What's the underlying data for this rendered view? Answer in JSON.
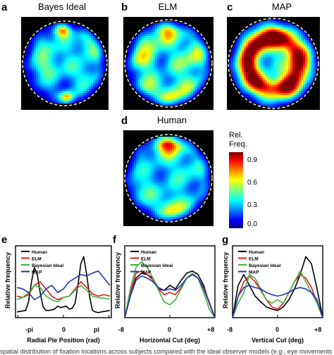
{
  "panels": {
    "a": {
      "letter": "a",
      "title": "Bayes Ideal"
    },
    "b": {
      "letter": "b",
      "title": "ELM"
    },
    "c": {
      "letter": "c",
      "title": "MAP"
    },
    "d": {
      "letter": "d",
      "title": "Human"
    },
    "e": {
      "letter": "e"
    },
    "f": {
      "letter": "f"
    },
    "g": {
      "letter": "g"
    }
  },
  "colorbar": {
    "title_line1": "Rel.",
    "title_line2": "Freq.",
    "ticks": [
      "0.9",
      "0.6",
      "0.3",
      "0.0"
    ],
    "tick_values": [
      0.9,
      0.6,
      0.3,
      0.0
    ],
    "range": [
      0,
      1
    ]
  },
  "heatmaps": {
    "a": {
      "base": 0.22,
      "blobs": [
        [
          -0.05,
          -0.82,
          0.14,
          0.55
        ],
        [
          0.05,
          0.86,
          0.12,
          0.55
        ],
        [
          0.62,
          -0.45,
          0.25,
          0.25
        ],
        [
          -0.5,
          0.1,
          0.22,
          0.22
        ],
        [
          0.0,
          0.0,
          0.3,
          0.12
        ],
        [
          0.55,
          0.35,
          0.2,
          0.2
        ],
        [
          -0.45,
          -0.45,
          0.2,
          0.18
        ]
      ]
    },
    "b": {
      "base": 0.24,
      "blobs": [
        [
          0.0,
          -0.75,
          0.2,
          0.45
        ],
        [
          0.05,
          0.8,
          0.2,
          0.4
        ],
        [
          0.6,
          -0.2,
          0.25,
          0.3
        ],
        [
          -0.6,
          -0.1,
          0.22,
          0.3
        ],
        [
          0.5,
          0.5,
          0.2,
          0.25
        ],
        [
          -0.5,
          0.55,
          0.2,
          0.25
        ],
        [
          -0.45,
          -0.5,
          0.18,
          0.25
        ],
        [
          0.2,
          0.0,
          0.2,
          0.12
        ]
      ]
    },
    "c": {
      "base": 0.32,
      "ring": [
        0.58,
        0.28,
        0.6
      ],
      "blobs": [
        [
          0.0,
          -0.62,
          0.25,
          0.25
        ],
        [
          0.6,
          0.0,
          0.22,
          0.2
        ],
        [
          -0.6,
          0.2,
          0.22,
          0.2
        ],
        [
          0.4,
          0.5,
          0.2,
          0.2
        ],
        [
          -0.4,
          -0.5,
          0.2,
          0.15
        ]
      ]
    },
    "d": {
      "base": 0.3,
      "blobs": [
        [
          0.0,
          -0.86,
          0.22,
          0.65
        ],
        [
          0.1,
          0.75,
          0.2,
          0.35
        ],
        [
          -0.6,
          0.3,
          0.2,
          0.12
        ],
        [
          0.4,
          -0.2,
          0.2,
          0.1
        ]
      ]
    }
  },
  "chart_data": [
    {
      "panel": "e",
      "type": "line",
      "xlabel": "Radial Pie Position (rad)",
      "ylabel": "Relative frequency",
      "xticks": [
        "-pi",
        "0",
        "pi"
      ],
      "xlim": [
        -3.3,
        3.3
      ],
      "ylim": [
        0,
        1
      ],
      "series": [
        {
          "name": "Human",
          "color": "#000000",
          "x": [
            -3.2,
            -2.9,
            -2.6,
            -2.4,
            -2.2,
            -2.0,
            -1.8,
            -1.6,
            -1.4,
            -1.2,
            -1.0,
            -0.8,
            -0.6,
            -0.4,
            -0.2,
            0.0,
            0.2,
            0.4,
            0.6,
            0.8,
            1.0,
            1.2,
            1.4,
            1.6,
            1.8,
            2.0,
            2.2,
            2.4,
            2.6,
            2.9,
            3.2
          ],
          "y": [
            0.08,
            0.09,
            0.1,
            0.22,
            0.5,
            0.7,
            0.6,
            0.35,
            0.15,
            0.1,
            0.1,
            0.11,
            0.12,
            0.16,
            0.14,
            0.15,
            0.16,
            0.12,
            0.13,
            0.2,
            0.45,
            0.75,
            0.85,
            0.6,
            0.3,
            0.1,
            0.08,
            0.07,
            0.08,
            0.09,
            0.1
          ]
        },
        {
          "name": "ELM",
          "color": "#e0191b",
          "x": [
            -3.2,
            -2.8,
            -2.4,
            -2.0,
            -1.6,
            -1.2,
            -0.8,
            -0.4,
            0.0,
            0.4,
            0.8,
            1.2,
            1.6,
            2.0,
            2.4,
            2.8,
            3.2
          ],
          "y": [
            0.3,
            0.28,
            0.32,
            0.45,
            0.5,
            0.4,
            0.3,
            0.25,
            0.28,
            0.3,
            0.4,
            0.5,
            0.42,
            0.33,
            0.3,
            0.32,
            0.3
          ]
        },
        {
          "name": "Bayesian Ideal",
          "color": "#3cb43c",
          "x": [
            -3.2,
            -2.8,
            -2.4,
            -2.0,
            -1.6,
            -1.2,
            -0.8,
            -0.4,
            0.0,
            0.4,
            0.8,
            1.2,
            1.6,
            2.0,
            2.4,
            2.8,
            3.2
          ],
          "y": [
            0.25,
            0.28,
            0.35,
            0.45,
            0.42,
            0.3,
            0.25,
            0.22,
            0.28,
            0.3,
            0.38,
            0.45,
            0.38,
            0.3,
            0.28,
            0.27,
            0.26
          ]
        },
        {
          "name": "MAP",
          "color": "#2236b8",
          "x": [
            -3.2,
            -2.8,
            -2.4,
            -2.0,
            -1.6,
            -1.2,
            -0.8,
            -0.4,
            0.0,
            0.4,
            0.8,
            1.2,
            1.6,
            2.0,
            2.4,
            2.8,
            3.2
          ],
          "y": [
            0.42,
            0.4,
            0.35,
            0.25,
            0.3,
            0.4,
            0.45,
            0.35,
            0.4,
            0.5,
            0.55,
            0.6,
            0.58,
            0.62,
            0.65,
            0.55,
            0.45
          ]
        }
      ]
    },
    {
      "panel": "f",
      "type": "line",
      "xlabel": "Horizontal Cut (deg)",
      "ylabel": "Relative frequency",
      "xticks": [
        "-8",
        "0",
        "+8"
      ],
      "xlim": [
        -8,
        8
      ],
      "ylim": [
        0,
        1
      ],
      "series": [
        {
          "name": "Human",
          "color": "#000000",
          "x": [
            -8,
            -7,
            -6,
            -5,
            -4,
            -3,
            -2,
            -1,
            0,
            1,
            2,
            3,
            4,
            5,
            6,
            7,
            8
          ],
          "y": [
            0.0,
            0.3,
            0.55,
            0.62,
            0.6,
            0.55,
            0.4,
            0.38,
            0.45,
            0.4,
            0.52,
            0.62,
            0.65,
            0.6,
            0.45,
            0.2,
            0.0
          ]
        },
        {
          "name": "ELM",
          "color": "#e0191b",
          "x": [
            -8,
            -7,
            -6,
            -5,
            -4,
            -3,
            -2,
            -1,
            0,
            1,
            2,
            3,
            4,
            5,
            6,
            7,
            8
          ],
          "y": [
            0.0,
            0.35,
            0.62,
            0.65,
            0.6,
            0.52,
            0.4,
            0.32,
            0.35,
            0.32,
            0.42,
            0.55,
            0.6,
            0.55,
            0.42,
            0.22,
            0.0
          ]
        },
        {
          "name": "Bayesian Ideal",
          "color": "#3cb43c",
          "x": [
            -8,
            -7,
            -6,
            -5,
            -4,
            -3,
            -2,
            -1,
            0,
            1,
            2,
            3,
            4,
            5,
            6,
            7,
            8
          ],
          "y": [
            0.0,
            0.4,
            0.7,
            0.78,
            0.7,
            0.55,
            0.38,
            0.22,
            0.18,
            0.25,
            0.4,
            0.55,
            0.62,
            0.55,
            0.35,
            0.12,
            0.0
          ]
        },
        {
          "name": "MAP",
          "color": "#2236b8",
          "x": [
            -8,
            -7,
            -6,
            -5,
            -4,
            -3,
            -2,
            -1,
            0,
            1,
            2,
            3,
            4,
            5,
            6,
            7,
            8
          ],
          "y": [
            0.0,
            0.3,
            0.52,
            0.58,
            0.55,
            0.5,
            0.42,
            0.38,
            0.4,
            0.38,
            0.45,
            0.55,
            0.6,
            0.55,
            0.4,
            0.2,
            0.0
          ]
        }
      ]
    },
    {
      "panel": "g",
      "type": "line",
      "xlabel": "Vertical Cut (deg)",
      "ylabel": "Relative frequency",
      "xticks": [
        "-8",
        "0",
        "+8"
      ],
      "xlim": [
        -8,
        8
      ],
      "ylim": [
        0,
        1
      ],
      "series": [
        {
          "name": "Human",
          "color": "#000000",
          "x": [
            -8,
            -7,
            -6,
            -5,
            -4,
            -3,
            -2,
            -1,
            0,
            1,
            2,
            3,
            4,
            5,
            6,
            7,
            8
          ],
          "y": [
            0.0,
            0.45,
            0.6,
            0.45,
            0.3,
            0.22,
            0.15,
            0.12,
            0.1,
            0.15,
            0.25,
            0.4,
            0.6,
            0.85,
            0.75,
            0.4,
            0.0
          ]
        },
        {
          "name": "ELM",
          "color": "#e0191b",
          "x": [
            -8,
            -7,
            -6,
            -5,
            -4,
            -3,
            -2,
            -1,
            0,
            1,
            2,
            3,
            4,
            5,
            6,
            7,
            8
          ],
          "y": [
            0.0,
            0.3,
            0.5,
            0.58,
            0.5,
            0.38,
            0.25,
            0.15,
            0.12,
            0.2,
            0.35,
            0.5,
            0.6,
            0.55,
            0.42,
            0.2,
            0.0
          ]
        },
        {
          "name": "Bayesian Ideal",
          "color": "#3cb43c",
          "x": [
            -8,
            -7,
            -6,
            -5,
            -4,
            -3,
            -2,
            -1,
            0,
            1,
            2,
            3,
            4,
            5,
            6,
            7,
            8
          ],
          "y": [
            0.0,
            0.2,
            0.35,
            0.6,
            0.55,
            0.4,
            0.25,
            0.2,
            0.25,
            0.2,
            0.35,
            0.5,
            0.65,
            0.5,
            0.35,
            0.2,
            0.0
          ]
        },
        {
          "name": "MAP",
          "color": "#2236b8",
          "x": [
            -8,
            -7,
            -6,
            -5,
            -4,
            -3,
            -2,
            -1,
            0,
            1,
            2,
            3,
            4,
            5,
            6,
            7,
            8
          ],
          "y": [
            0.0,
            0.3,
            0.42,
            0.45,
            0.42,
            0.4,
            0.35,
            0.32,
            0.3,
            0.32,
            0.35,
            0.4,
            0.42,
            0.4,
            0.35,
            0.25,
            0.0
          ]
        }
      ]
    }
  ],
  "caption": "spatial distribution of fixation locations across subjects compared with the ideal observer models (e.g., eye movements to visible and hidden locations)"
}
